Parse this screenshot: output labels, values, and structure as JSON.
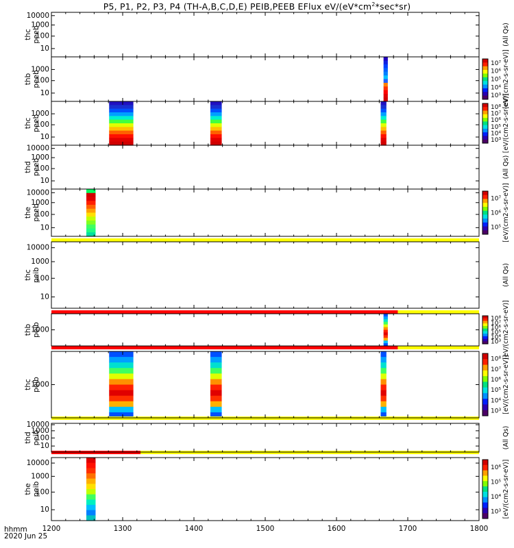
{
  "title": {
    "main": "P5, P1, P2, P3, P4 (TH-A,B,C,D,E) PEIB,PEEB EFlux eV/(eV*cm",
    "sup": "2",
    "tail": "*sec*sr)"
  },
  "footer": {
    "time_unit": "hhmm",
    "date": "2020 Jun 25"
  },
  "chart_data": {
    "type": "heatmap",
    "x_axis": {
      "range": [
        1200,
        1800
      ],
      "ticks": [
        1200,
        1300,
        1400,
        1500,
        1600,
        1700,
        1800
      ],
      "tick_labels": [
        "1200",
        "1300",
        "1400",
        "1500",
        "1600",
        "1700",
        "1800"
      ],
      "unit_label": "hhmm"
    },
    "panels": [
      {
        "label": [
          "thc",
          "peeb"
        ],
        "y_log": true,
        "y_ticks": [
          "10000",
          "1000",
          "100",
          "10"
        ],
        "colorbar": null,
        "unit_label": "(All Qs)",
        "blocks": []
      },
      {
        "label": [
          "thb",
          "peeb"
        ],
        "y_log": true,
        "y_ticks": [
          "1000",
          "100",
          "10"
        ],
        "colorbar": {
          "ticks": [
            "10⁷",
            "10⁶",
            "10⁵",
            "10⁴",
            "10³"
          ]
        },
        "unit_label": "[eV/(cm2-s-sr-eV)]",
        "blocks": [
          {
            "x0": 1666,
            "x1": 1672,
            "profile": "thb_peeb"
          }
        ]
      },
      {
        "label": [
          "thc",
          "peeb"
        ],
        "y_log": true,
        "y_ticks": [
          "1000",
          "100",
          "10"
        ],
        "colorbar": {
          "ticks": [
            "10⁸",
            "10⁷",
            "10⁶",
            "10⁵",
            "10⁴",
            "10³"
          ]
        },
        "unit_label": "[eV/(cm2-s-sr-eV)]",
        "blocks": [
          {
            "x0": 1281,
            "x1": 1315,
            "profile": "peeb_full"
          },
          {
            "x0": 1423,
            "x1": 1439,
            "profile": "peeb_full"
          },
          {
            "x0": 1662,
            "x1": 1670,
            "profile": "peeb_full"
          }
        ]
      },
      {
        "label": [
          "thd",
          "peeb"
        ],
        "y_log": true,
        "y_ticks": [
          "10000",
          "1000",
          "100",
          "10"
        ],
        "colorbar": null,
        "unit_label": "(All Qs)",
        "blocks": []
      },
      {
        "label": [
          "the",
          "peeb"
        ],
        "y_log": true,
        "y_ticks": [
          "10000",
          "1000",
          "100",
          "10"
        ],
        "colorbar": {
          "ticks": [
            "10⁷",
            "10⁶",
            "10⁵"
          ]
        },
        "unit_label": "[eV/(cm2-s-sr-eV)]",
        "blocks": [
          {
            "x0": 1249,
            "x1": 1262,
            "profile": "the_peeb"
          }
        ],
        "status_bar": [
          {
            "from": 1200,
            "to": 1800,
            "color": "#ffff00"
          }
        ]
      },
      {
        "label": [
          "thc",
          "peib"
        ],
        "y_log": true,
        "y_ticks": [
          "10000",
          "1000",
          "100",
          "10"
        ],
        "colorbar": null,
        "unit_label": "(All Qs)",
        "blocks": [],
        "status_bar": [
          {
            "from": 1200,
            "to": 1686,
            "color": "#ff0000"
          },
          {
            "from": 1686,
            "to": 1800,
            "color": "#ffff00"
          }
        ]
      },
      {
        "label": [
          "thb",
          "peib"
        ],
        "y_log": true,
        "y_ticks": [
          "1000"
        ],
        "colorbar": {
          "ticks": [
            "10⁸",
            "10⁷",
            "10⁶",
            "10⁵",
            "10⁴",
            "10³"
          ]
        },
        "unit_label": "[eV/(cm2-s-sr-eV)]",
        "blocks": [
          {
            "x0": 1666,
            "x1": 1672,
            "profile": "peib"
          }
        ],
        "status_bar": [
          {
            "from": 1200,
            "to": 1686,
            "color": "#ff0000"
          },
          {
            "from": 1686,
            "to": 1800,
            "color": "#ffff00"
          }
        ]
      },
      {
        "label": [
          "thc",
          "peib"
        ],
        "y_log": true,
        "y_ticks": [
          "1000"
        ],
        "colorbar": {
          "ticks": [
            "10⁸",
            "10⁷",
            "10⁶",
            "10⁵",
            "10⁴",
            "10³"
          ]
        },
        "unit_label": "[eV/(cm2-s-sr-eV)]",
        "blocks": [
          {
            "x0": 1281,
            "x1": 1315,
            "profile": "peib"
          },
          {
            "x0": 1423,
            "x1": 1439,
            "profile": "peib"
          },
          {
            "x0": 1662,
            "x1": 1670,
            "profile": "peib"
          }
        ],
        "status_bar": [
          {
            "from": 1200,
            "to": 1800,
            "color": "#ffff00"
          }
        ]
      },
      {
        "label": [
          "thd",
          "peib"
        ],
        "y_log": true,
        "y_ticks": [
          "10000",
          "1000",
          "100",
          "10"
        ],
        "colorbar": null,
        "unit_label": "(All Qs)",
        "blocks": [],
        "status_bar": [
          {
            "from": 1200,
            "to": 1325,
            "color": "#ff0000"
          },
          {
            "from": 1325,
            "to": 1800,
            "color": "#ffff00"
          }
        ]
      },
      {
        "label": [
          "the",
          "peib"
        ],
        "y_log": true,
        "y_ticks": [
          "10000",
          "1000",
          "100",
          "10"
        ],
        "colorbar": {
          "ticks": [
            "10⁶",
            "10⁵",
            "10⁴",
            "10³"
          ]
        },
        "unit_label": "[eV/(cm2-s-sr-eV)]",
        "blocks": [
          {
            "x0": 1249,
            "x1": 1262,
            "profile": "the_peib"
          }
        ]
      }
    ],
    "colormap": [
      "#4b0066",
      "#2a00b0",
      "#0020ff",
      "#0090ff",
      "#00e0e0",
      "#00e080",
      "#80ff00",
      "#ffff00",
      "#ffa000",
      "#ff2000",
      "#d00000"
    ],
    "profiles": {
      "peeb_full": [
        "#2010c0",
        "#1830d0",
        "#0050ff",
        "#00a0ff",
        "#00f0d0",
        "#40ff40",
        "#e0ff00",
        "#ffc000",
        "#ff6000",
        "#ff1000",
        "#e00000",
        "#d00000"
      ],
      "thb_peeb": [
        "#2000c0",
        "#1020e0",
        "#0040ff",
        "#0060ff",
        "#0080ff",
        "#00c0ff",
        "#2060ff",
        "#ff8000",
        "#ff3000",
        "#ff0000",
        "#e00000",
        "#d00000"
      ],
      "the_peeb": [
        "#00ff60",
        "#d00000",
        "#e00000",
        "#ff2000",
        "#ff6000",
        "#ffa000",
        "#ffe000",
        "#c0ff00",
        "#80ff20",
        "#40ff60",
        "#20ff80",
        "#00e0a0"
      ],
      "peib": [
        "#0050ff",
        "#00a0ff",
        "#00e0d0",
        "#40ff60",
        "#e0ff00",
        "#ff9000",
        "#ff2000",
        "#e00000",
        "#ff3000",
        "#ffb000",
        "#00c0ff",
        "#0050ff"
      ],
      "the_peib": [
        "#e00000",
        "#ff1000",
        "#ff3000",
        "#ff7000",
        "#ffb000",
        "#ffe000",
        "#c0ff00",
        "#40ff60",
        "#00f0c0",
        "#00c0ff",
        "#0080ff",
        "#00c0c0"
      ]
    }
  }
}
